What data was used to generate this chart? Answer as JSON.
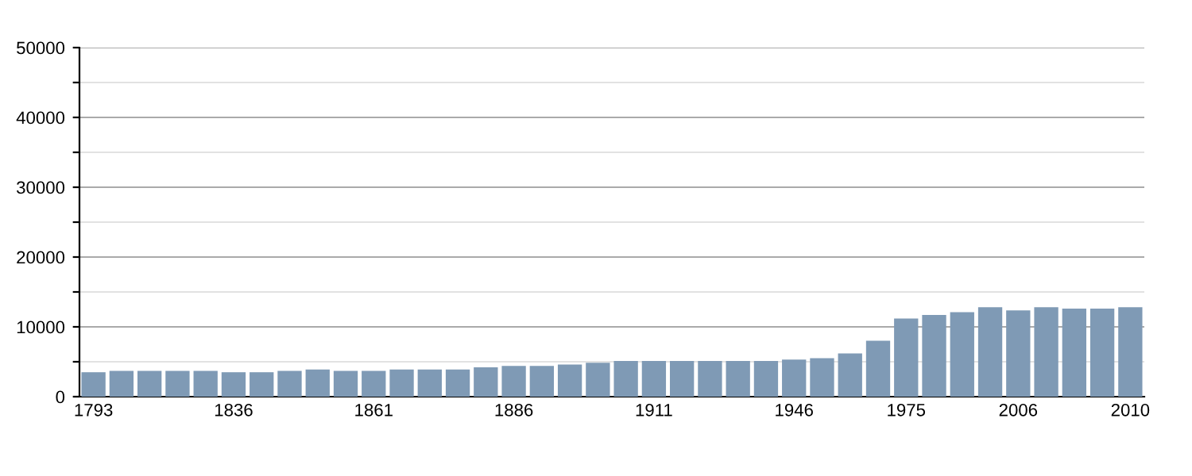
{
  "chart_data": {
    "type": "bar",
    "categories": [
      "1793",
      null,
      null,
      null,
      null,
      "1836",
      null,
      null,
      null,
      null,
      "1861",
      null,
      null,
      null,
      null,
      "1886",
      null,
      null,
      null,
      null,
      "1911",
      null,
      null,
      null,
      null,
      "1946",
      null,
      null,
      null,
      "1975",
      null,
      null,
      null,
      "2006",
      null,
      null,
      null,
      "2010"
    ],
    "values": [
      3500,
      3700,
      3700,
      3700,
      3700,
      3500,
      3500,
      3700,
      3900,
      3700,
      3700,
      3900,
      3900,
      3900,
      4200,
      4400,
      4400,
      4600,
      4850,
      5100,
      5100,
      5100,
      5100,
      5100,
      5100,
      5300,
      5500,
      6200,
      8000,
      11200,
      11700,
      12100,
      12800,
      12350,
      12800,
      12600,
      12600,
      12800
    ],
    "color": "#7f9ab5",
    "ylim": [
      0,
      50000
    ],
    "yticks": [
      0,
      {
        "value": 5000,
        "label": null
      },
      10000,
      {
        "value": 15000,
        "label": null
      },
      20000,
      {
        "value": 25000,
        "label": null
      },
      30000,
      {
        "value": 35000,
        "label": null
      },
      40000,
      {
        "value": 45000,
        "label": null
      },
      50000
    ],
    "grid": "y"
  }
}
